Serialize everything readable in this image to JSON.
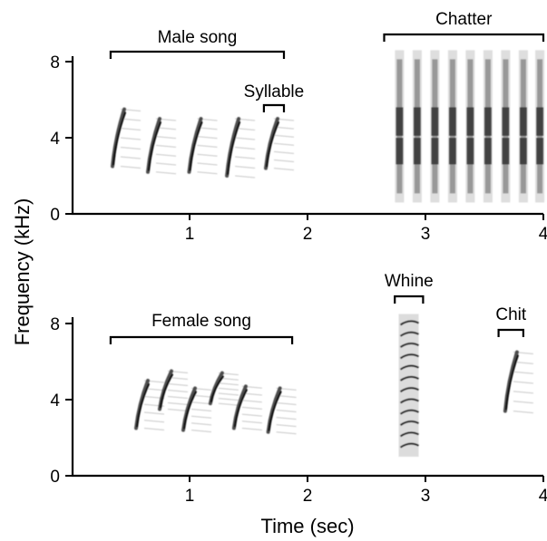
{
  "figure": {
    "ylabel": "Frequency (kHz)",
    "xlabel": "Time (sec)"
  },
  "chart_data": [
    {
      "type": "heatmap",
      "panel": "top",
      "x_ticks": [
        1,
        2,
        3,
        4
      ],
      "y_ticks": [
        0,
        4,
        8
      ],
      "xlim": [
        0,
        4
      ],
      "ylim": [
        0,
        8.5
      ],
      "annotations": [
        {
          "label": "Male song",
          "x_start": 0.33,
          "x_end": 1.8
        },
        {
          "label": "Syllable",
          "x_start": 1.63,
          "x_end": 1.8
        },
        {
          "label": "Chatter",
          "x_start": 2.65,
          "x_end": 4.0
        }
      ],
      "events": [
        {
          "kind": "sweep",
          "t": 0.4,
          "f_low": 2.5,
          "f_high": 5.5
        },
        {
          "kind": "sweep",
          "t": 0.7,
          "f_low": 2.2,
          "f_high": 5.0
        },
        {
          "kind": "sweep",
          "t": 1.05,
          "f_low": 2.2,
          "f_high": 5.0
        },
        {
          "kind": "sweep",
          "t": 1.37,
          "f_low": 2.0,
          "f_high": 5.0
        },
        {
          "kind": "sweep",
          "t": 1.7,
          "f_low": 2.4,
          "f_high": 5.0
        },
        {
          "kind": "pulse",
          "t": 2.78,
          "f_low": 0.6,
          "f_high": 8.6
        },
        {
          "kind": "pulse",
          "t": 2.93,
          "f_low": 0.6,
          "f_high": 8.6
        },
        {
          "kind": "pulse",
          "t": 3.08,
          "f_low": 0.6,
          "f_high": 8.6
        },
        {
          "kind": "pulse",
          "t": 3.23,
          "f_low": 0.6,
          "f_high": 8.6
        },
        {
          "kind": "pulse",
          "t": 3.38,
          "f_low": 0.6,
          "f_high": 8.6
        },
        {
          "kind": "pulse",
          "t": 3.53,
          "f_low": 0.6,
          "f_high": 8.6
        },
        {
          "kind": "pulse",
          "t": 3.68,
          "f_low": 0.6,
          "f_high": 8.6
        },
        {
          "kind": "pulse",
          "t": 3.83,
          "f_low": 0.6,
          "f_high": 8.6
        },
        {
          "kind": "pulse",
          "t": 3.97,
          "f_low": 0.6,
          "f_high": 8.6
        }
      ]
    },
    {
      "type": "heatmap",
      "panel": "bottom",
      "x_ticks": [
        1,
        2,
        3,
        4
      ],
      "y_ticks": [
        0,
        4,
        8
      ],
      "xlim": [
        0,
        4
      ],
      "ylim": [
        0,
        8.5
      ],
      "annotations": [
        {
          "label": "Female song",
          "x_start": 0.33,
          "x_end": 1.87
        },
        {
          "label": "Whine",
          "x_start": 2.74,
          "x_end": 2.98
        },
        {
          "label": "Chit",
          "x_start": 3.62,
          "x_end": 3.83
        }
      ],
      "events": [
        {
          "kind": "sweep",
          "t": 0.6,
          "f_low": 2.5,
          "f_high": 5.0
        },
        {
          "kind": "sweep",
          "t": 0.8,
          "f_low": 3.5,
          "f_high": 5.5
        },
        {
          "kind": "sweep",
          "t": 1.0,
          "f_low": 2.4,
          "f_high": 4.6
        },
        {
          "kind": "sweep",
          "t": 1.23,
          "f_low": 3.8,
          "f_high": 5.4
        },
        {
          "kind": "sweep",
          "t": 1.43,
          "f_low": 2.5,
          "f_high": 4.7
        },
        {
          "kind": "sweep",
          "t": 1.72,
          "f_low": 2.3,
          "f_high": 4.6
        },
        {
          "kind": "whine",
          "t": 2.85,
          "f_low": 1.0,
          "f_high": 8.5
        },
        {
          "kind": "sweep",
          "t": 3.73,
          "f_low": 3.4,
          "f_high": 6.5
        }
      ]
    }
  ]
}
